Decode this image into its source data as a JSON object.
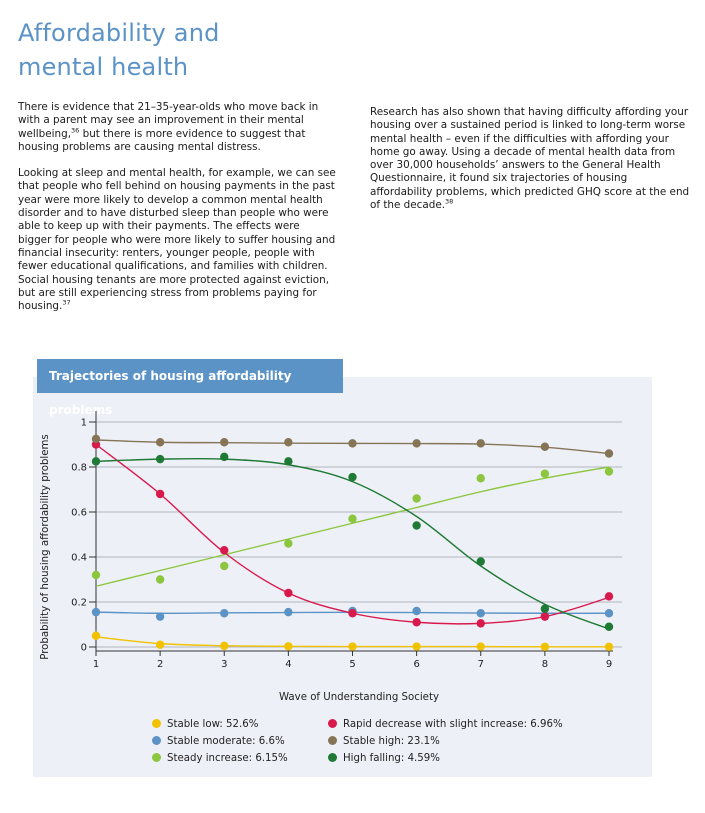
{
  "page": {
    "title_line1": "Affordability and",
    "title_line2": "mental health"
  },
  "left_column": {
    "p1": {
      "text": "There is evidence that 21–35-year-olds who move back in with a parent may see an improvement in their mental wellbeing,",
      "ref": "36",
      "text2": " but there is more evidence to suggest that housing problems are causing mental distress."
    },
    "p2": {
      "text": "Looking at sleep and mental health, for example, we can see that people who fell behind on housing payments in the past year were more likely to develop a common mental health disorder and to have disturbed sleep than people who were able to keep up with their payments. The effects were bigger for people who were more likely to suffer housing and financial insecurity: renters, younger people, people with fewer educational qualifications, and families with children. Social housing tenants are more protected against eviction, but are still experiencing stress from problems paying for housing.",
      "ref": "37"
    }
  },
  "right_column": {
    "p1": {
      "text": "Research has also shown that having difficulty affording your housing over a sustained period is linked to long-term worse mental health – even if the difficulties with affording your home go away. Using a decade of mental health data from over 30,000 households’ answers to the General Health Questionnaire, it found six trajectories of housing affordability problems, which predicted GHQ score at the end of the decade.",
      "ref": "38"
    }
  },
  "figure": {
    "title": "Trajectories of housing affordability problems"
  },
  "chart_data": {
    "type": "line",
    "xlabel": "Wave of Understanding Society",
    "ylabel": "Probability of housing affordability problems",
    "x": [
      1,
      2,
      3,
      4,
      5,
      6,
      7,
      8,
      9
    ],
    "xlim": [
      1,
      9
    ],
    "ylim": [
      0,
      1
    ],
    "yticks": [
      0,
      0.2,
      0.4,
      0.6,
      0.8,
      1
    ],
    "ytick_labels": [
      "0",
      "0.2",
      "0.4",
      "0.6",
      "0.8",
      "1"
    ],
    "xtick_labels": [
      "1",
      "2",
      "3",
      "4",
      "5",
      "6",
      "7",
      "8",
      "9"
    ],
    "grid": true,
    "legend_position": "bottom",
    "series": [
      {
        "name": "Stable low: 52.6%",
        "color": "#f2c200",
        "values": [
          0.05,
          0.01,
          0.005,
          0.003,
          0.002,
          0.002,
          0.002,
          0.001,
          0.001
        ],
        "fit": [
          0.045,
          0.015,
          0.006,
          0.003,
          0.002,
          0.002,
          0.002,
          0.001,
          0.001
        ]
      },
      {
        "name": "Stable moderate: 6.6%",
        "color": "#5b93c7",
        "values": [
          0.155,
          0.135,
          0.15,
          0.155,
          0.16,
          0.16,
          0.15,
          0.14,
          0.15
        ],
        "fit": [
          0.155,
          0.15,
          0.152,
          0.153,
          0.154,
          0.153,
          0.151,
          0.15,
          0.15
        ]
      },
      {
        "name": "Steady increase: 6.15%",
        "color": "#8cc63e",
        "values": [
          0.32,
          0.3,
          0.36,
          0.46,
          0.57,
          0.66,
          0.75,
          0.77,
          0.78
        ],
        "fit": [
          0.27,
          0.34,
          0.41,
          0.48,
          0.55,
          0.62,
          0.69,
          0.75,
          0.8
        ]
      },
      {
        "name": "Rapid decrease with slight increase: 6.96%",
        "color": "#d8194c",
        "values": [
          0.9,
          0.68,
          0.43,
          0.24,
          0.15,
          0.11,
          0.105,
          0.135,
          0.225
        ],
        "fit": [
          0.9,
          0.68,
          0.42,
          0.24,
          0.15,
          0.11,
          0.105,
          0.135,
          0.22
        ]
      },
      {
        "name": "Stable high: 23.1%",
        "color": "#857556",
        "values": [
          0.925,
          0.91,
          0.91,
          0.91,
          0.905,
          0.905,
          0.905,
          0.89,
          0.86
        ],
        "fit": [
          0.92,
          0.91,
          0.908,
          0.906,
          0.905,
          0.904,
          0.902,
          0.888,
          0.86
        ]
      },
      {
        "name": "High falling: 4.59%",
        "color": "#1e7a34",
        "values": [
          0.825,
          0.835,
          0.845,
          0.825,
          0.755,
          0.54,
          0.38,
          0.17,
          0.09
        ],
        "fit": [
          0.825,
          0.835,
          0.835,
          0.81,
          0.735,
          0.58,
          0.36,
          0.19,
          0.08
        ]
      }
    ]
  }
}
